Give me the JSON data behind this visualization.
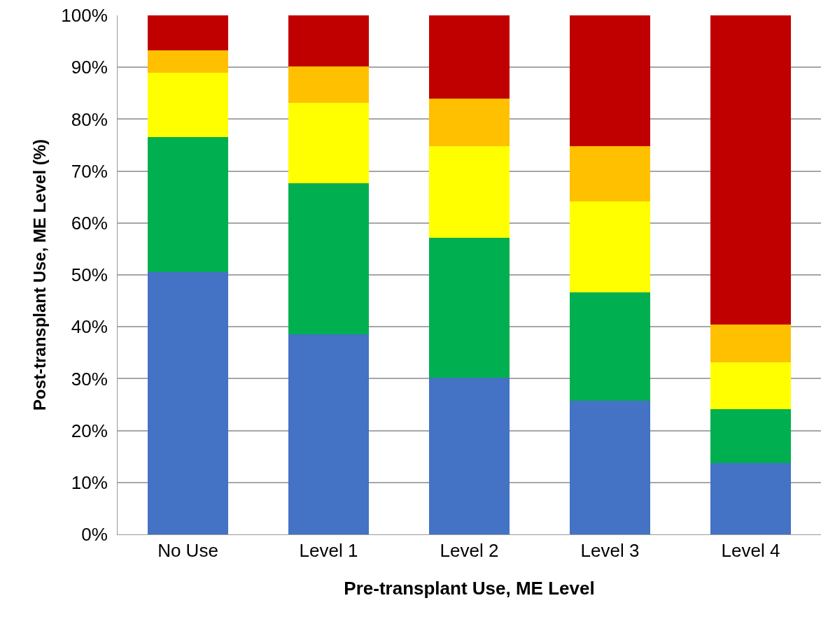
{
  "chart_data": {
    "type": "bar",
    "stacked": true,
    "xlabel": "Pre-transplant Use, ME Level",
    "ylabel": "Post-transplant Use, ME Level (%)",
    "categories": [
      "No Use",
      "Level 1",
      "Level 2",
      "Level 3",
      "Level 4"
    ],
    "series": [
      {
        "color": "#4472c4",
        "values": [
          50.5,
          38.5,
          30.2,
          25.8,
          13.8
        ]
      },
      {
        "color": "#00b050",
        "values": [
          26,
          29.1,
          27,
          20.8,
          10.3
        ]
      },
      {
        "color": "#ffff00",
        "values": [
          12.5,
          15.6,
          17.6,
          17.5,
          9
        ]
      },
      {
        "color": "#ffc000",
        "values": [
          4.3,
          6.9,
          9.2,
          10.7,
          7.3
        ]
      },
      {
        "color": "#c00000",
        "values": [
          6.7,
          9.9,
          16,
          25.2,
          59.6
        ]
      }
    ],
    "ylim": [
      0,
      100
    ],
    "yticks": [
      {
        "value": 0,
        "label": "0%"
      },
      {
        "value": 10,
        "label": "10%"
      },
      {
        "value": 20,
        "label": "20%"
      },
      {
        "value": 30,
        "label": "30%"
      },
      {
        "value": 40,
        "label": "40%"
      },
      {
        "value": 50,
        "label": "50%"
      },
      {
        "value": 60,
        "label": "60%"
      },
      {
        "value": 70,
        "label": "70%"
      },
      {
        "value": 80,
        "label": "80%"
      },
      {
        "value": 90,
        "label": "90%"
      },
      {
        "value": 100,
        "label": "100%"
      }
    ],
    "grid": "y",
    "legend": false
  }
}
